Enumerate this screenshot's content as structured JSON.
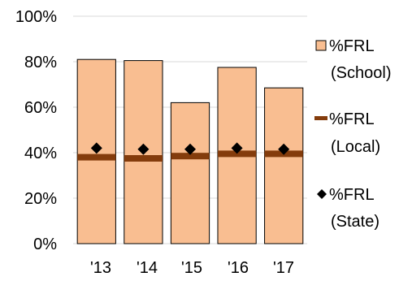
{
  "chart_data": {
    "type": "bar",
    "categories": [
      "'13",
      "'14",
      "'15",
      "'16",
      "'17"
    ],
    "series": [
      {
        "name": "%FRL (School)",
        "type": "bar",
        "values": [
          81,
          80.5,
          62,
          77.5,
          68.5
        ],
        "color": "#F9BE91"
      },
      {
        "name": "%FRL (Local)",
        "type": "line-marker",
        "values": [
          38,
          37.5,
          38.5,
          39.5,
          39.5
        ],
        "color": "#843C0C"
      },
      {
        "name": "%FRL (State)",
        "type": "diamond-marker",
        "values": [
          42,
          41.5,
          41.5,
          42,
          41.5
        ],
        "color": "#000000"
      }
    ],
    "ylim": [
      0,
      100
    ],
    "yticks": [
      "0%",
      "20%",
      "40%",
      "60%",
      "80%",
      "100%"
    ],
    "grid": true,
    "legend": {
      "placement": "right",
      "items": [
        {
          "line1": "%FRL",
          "line2": "(School)"
        },
        {
          "line1": "%FRL",
          "line2": "(Local)"
        },
        {
          "line1": "%FRL",
          "line2": "(State)"
        }
      ]
    }
  }
}
